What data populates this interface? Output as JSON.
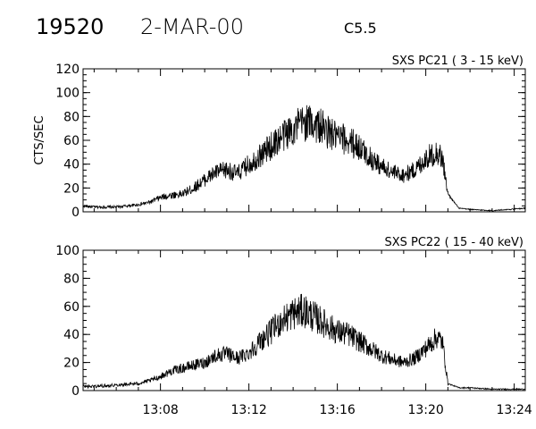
{
  "header": {
    "event_id": "19520",
    "date": "2-MAR-00",
    "flare_class": "C5.5"
  },
  "chart_data": [
    {
      "type": "line",
      "title": "SXS PC21  (  3 - 15 keV)",
      "ylabel": "CTS/SEC",
      "xlabel": "",
      "ylim": [
        0,
        120
      ],
      "yticks": [
        0,
        20,
        40,
        60,
        80,
        100,
        120
      ],
      "xlim": [
        "13:04:30",
        "13:24:30"
      ],
      "xticks": [],
      "legend": "none",
      "grid": false,
      "series": [
        {
          "x": [
            "13:04:30",
            "13:05:00",
            "13:06:00",
            "13:07:00",
            "13:07:30",
            "13:08:00",
            "13:08:30",
            "13:09:00",
            "13:09:30",
            "13:10:00",
            "13:10:30",
            "13:11:00",
            "13:11:30",
            "13:12:00",
            "13:12:30",
            "13:13:00",
            "13:13:30",
            "13:14:00",
            "13:14:30",
            "13:15:00",
            "13:15:30",
            "13:16:00",
            "13:16:30",
            "13:17:00",
            "13:17:30",
            "13:18:00",
            "13:18:30",
            "13:19:00",
            "13:19:30",
            "13:20:00",
            "13:20:30",
            "13:20:45",
            "13:21:00",
            "13:21:30",
            "13:22:00",
            "13:23:00",
            "13:24:30"
          ],
          "values": [
            5,
            4,
            4,
            6,
            8,
            12,
            14,
            15,
            20,
            27,
            33,
            35,
            32,
            40,
            47,
            55,
            63,
            70,
            75,
            74,
            68,
            62,
            60,
            54,
            45,
            38,
            33,
            31,
            35,
            45,
            50,
            45,
            15,
            3,
            2,
            1,
            3
          ]
        }
      ]
    },
    {
      "type": "line",
      "title": "SXS PC22  ( 15 - 40 keV)",
      "ylabel": "",
      "xlabel": "",
      "ylim": [
        0,
        100
      ],
      "yticks": [
        0,
        20,
        40,
        60,
        80,
        100
      ],
      "xlim": [
        "13:04:30",
        "13:24:30"
      ],
      "xticks": [
        "13:08",
        "13:12",
        "13:16",
        "13:20",
        "13:24"
      ],
      "legend": "none",
      "grid": false,
      "series": [
        {
          "x": [
            "13:04:30",
            "13:05:00",
            "13:06:00",
            "13:07:00",
            "13:07:30",
            "13:08:00",
            "13:08:30",
            "13:09:00",
            "13:09:30",
            "13:10:00",
            "13:10:30",
            "13:11:00",
            "13:11:30",
            "13:12:00",
            "13:12:30",
            "13:13:00",
            "13:13:30",
            "13:14:00",
            "13:14:30",
            "13:15:00",
            "13:15:30",
            "13:16:00",
            "13:16:30",
            "13:17:00",
            "13:17:30",
            "13:18:00",
            "13:18:30",
            "13:19:00",
            "13:19:30",
            "13:20:00",
            "13:20:30",
            "13:20:45",
            "13:21:00",
            "13:21:30",
            "13:22:00",
            "13:23:00",
            "13:24:30"
          ],
          "values": [
            3,
            3,
            4,
            5,
            7,
            10,
            14,
            16,
            18,
            20,
            25,
            26,
            23,
            27,
            35,
            42,
            50,
            55,
            57,
            52,
            47,
            42,
            40,
            35,
            30,
            25,
            22,
            20,
            23,
            30,
            38,
            35,
            5,
            2,
            2,
            1,
            1
          ]
        }
      ]
    }
  ]
}
